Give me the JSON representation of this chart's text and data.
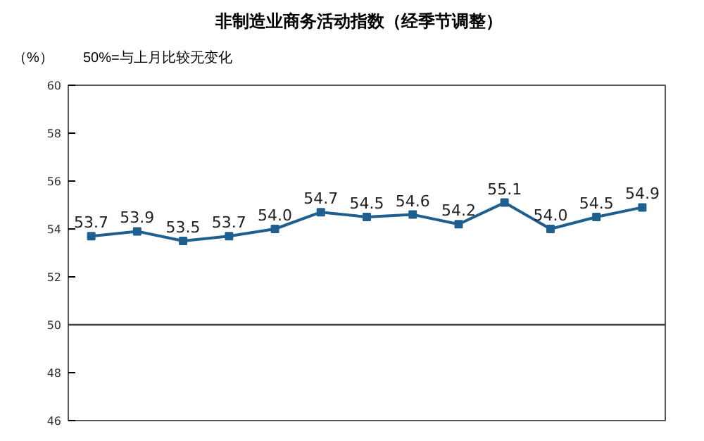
{
  "chart_data": {
    "type": "line",
    "title": "非制造业商务活动指数（经季节调整）",
    "ylabel": "（%）",
    "annotations": [
      "50%=与上月比较无变化"
    ],
    "categories": [
      null,
      null,
      null,
      null,
      null,
      null,
      null,
      null,
      null,
      null,
      null,
      null,
      null
    ],
    "series": [
      {
        "color": "#1f5f8f",
        "values": [
          53.7,
          53.9,
          53.5,
          53.7,
          54.0,
          54.7,
          54.5,
          54.6,
          54.2,
          55.1,
          54.0,
          54.5,
          54.9
        ],
        "value_labels": [
          "53.7",
          "53.9",
          "53.5",
          "53.7",
          "54.0",
          "54.7",
          "54.5",
          "54.6",
          "54.2",
          "55.1",
          "54.0",
          "54.5",
          "54.9"
        ]
      }
    ],
    "ylim": [
      46,
      60
    ],
    "yticks": [
      46,
      48,
      50,
      52,
      54,
      56,
      58,
      60
    ],
    "grid": false,
    "marker": "square",
    "ref_lines": [
      {
        "axis": "y",
        "value": 50,
        "color": "#404040"
      }
    ]
  }
}
